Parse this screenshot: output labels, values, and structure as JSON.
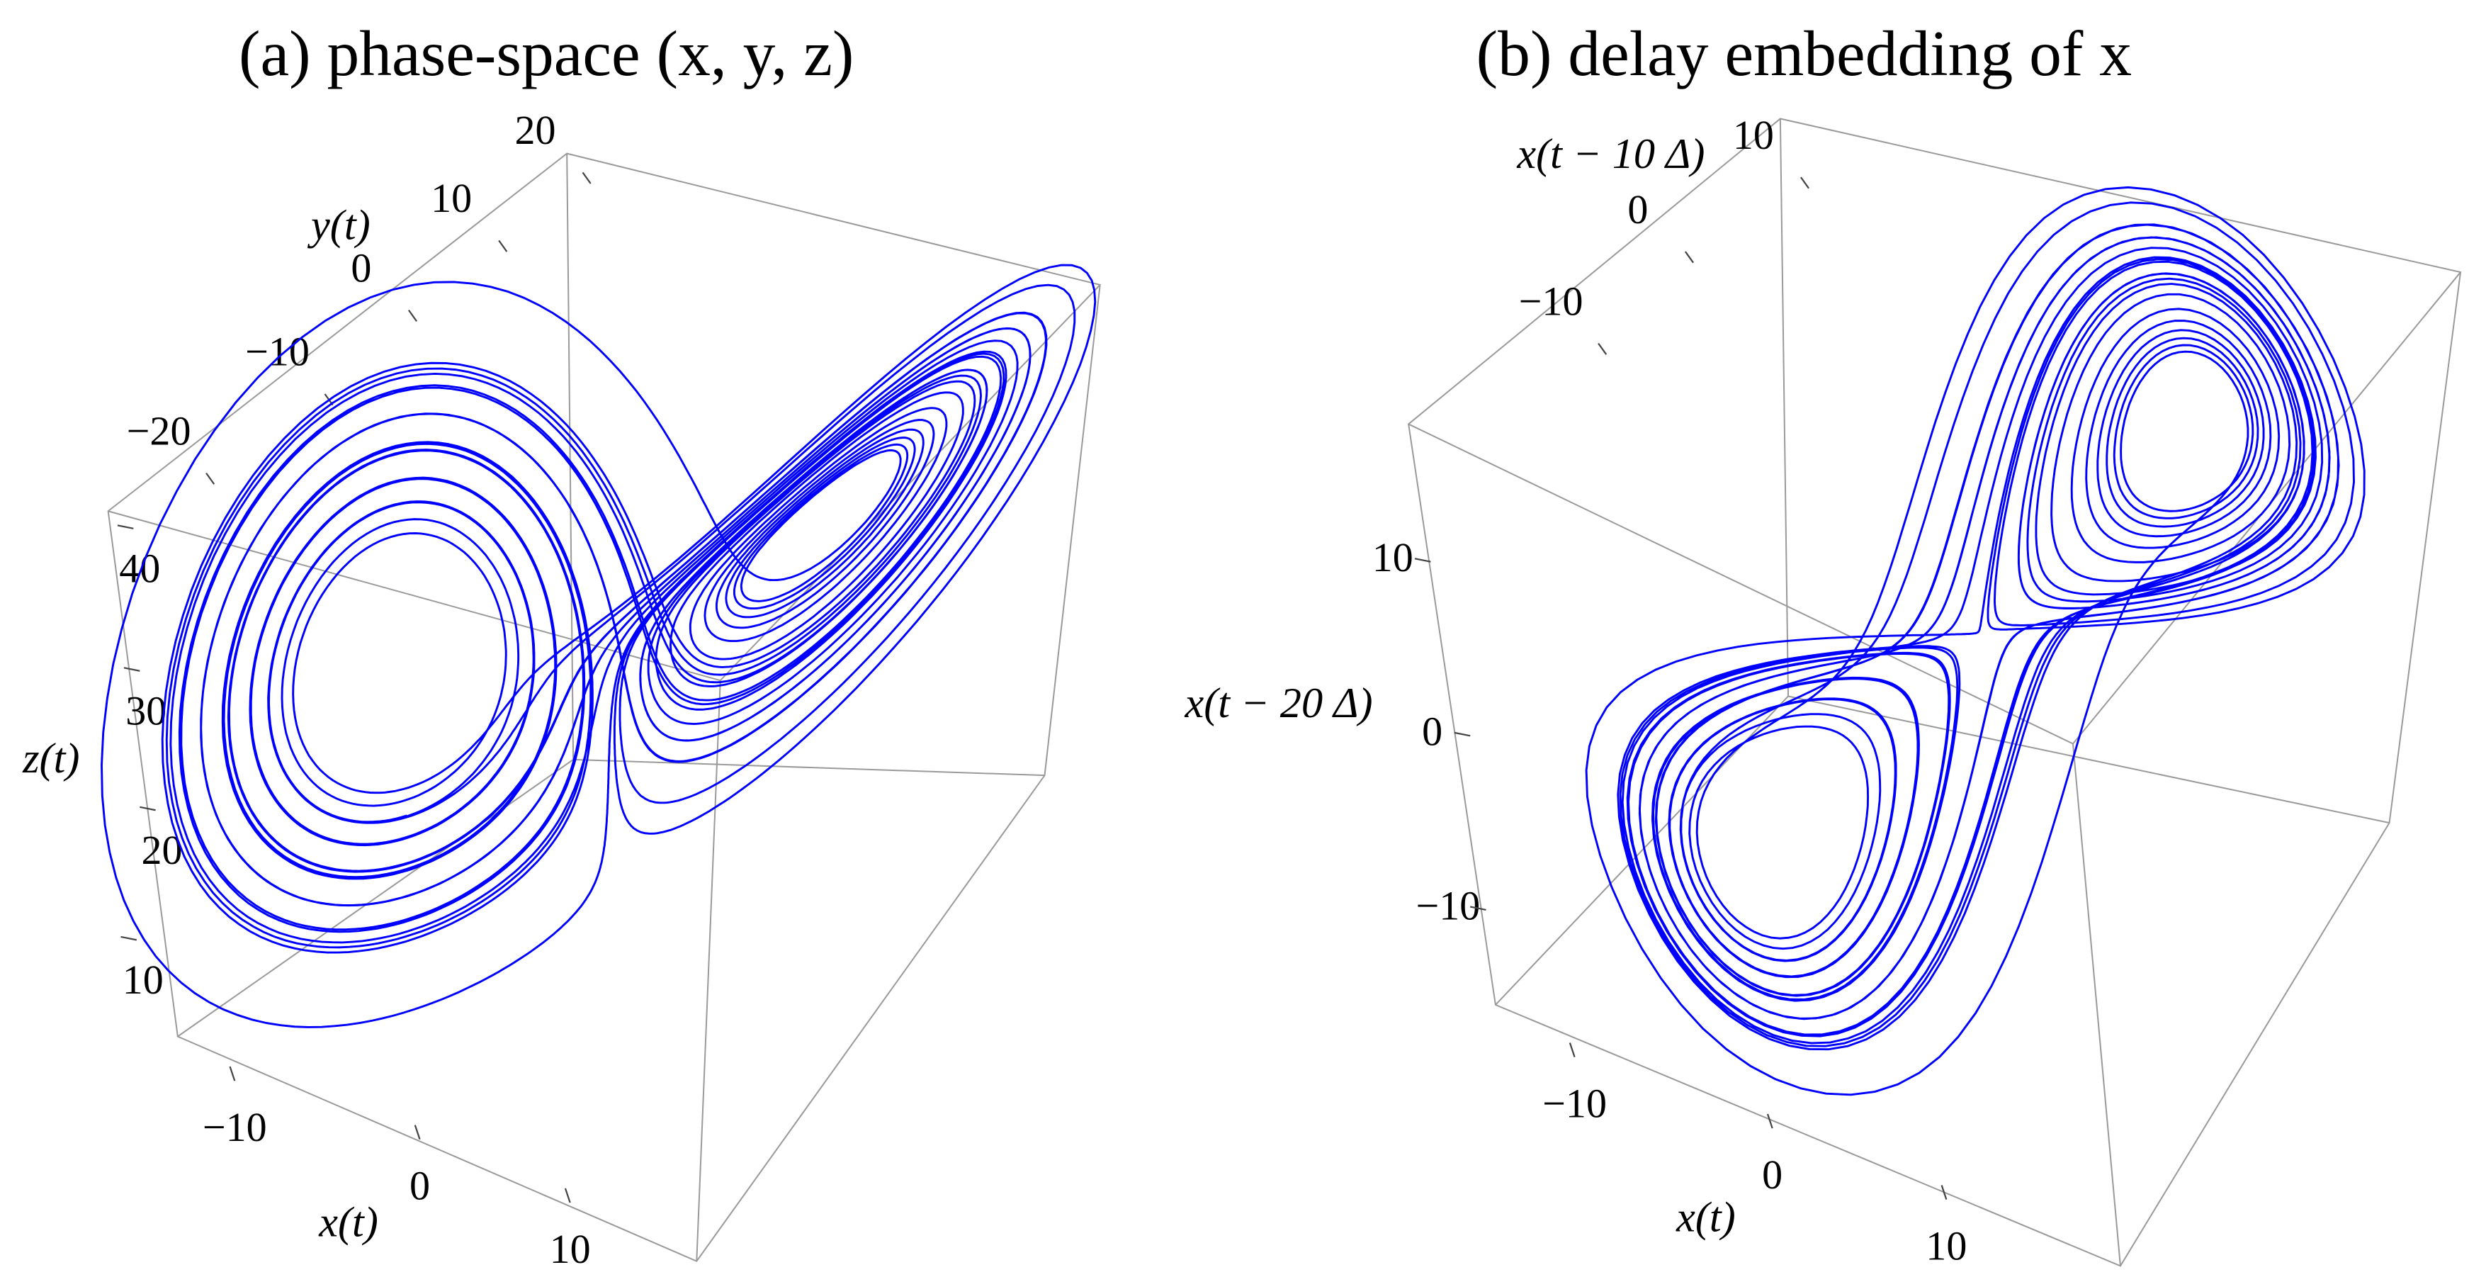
{
  "chart_data": [
    {
      "type": "line3d",
      "title": "(a) phase-space (x, y, z)",
      "xlabel": "x(t)",
      "ylabel": "y(t)",
      "zlabel": "z(t)",
      "color": "#0000ff",
      "xticks": [
        {
          "value": -10,
          "label": "−10"
        },
        0,
        10
      ],
      "yticks": [
        {
          "value": -20,
          "label": "−20"
        },
        {
          "value": -10,
          "label": "−10"
        },
        0,
        10,
        20
      ],
      "zticks": [
        10,
        20,
        30,
        40
      ]
    },
    {
      "type": "delay3d",
      "title": "(b) delay embedding of x",
      "xlabel": "x(t)",
      "ylabel": "x(t − 10 Δ)",
      "zlabel": "x(t − 20 Δ)",
      "color": "#0000ff",
      "xticks": [
        {
          "value": -10,
          "label": "−10"
        },
        0,
        10
      ],
      "yticks": [
        {
          "value": -10,
          "label": "−10"
        },
        0,
        10
      ],
      "zticks": [
        {
          "value": -10,
          "label": "−10"
        },
        0,
        10
      ]
    }
  ]
}
